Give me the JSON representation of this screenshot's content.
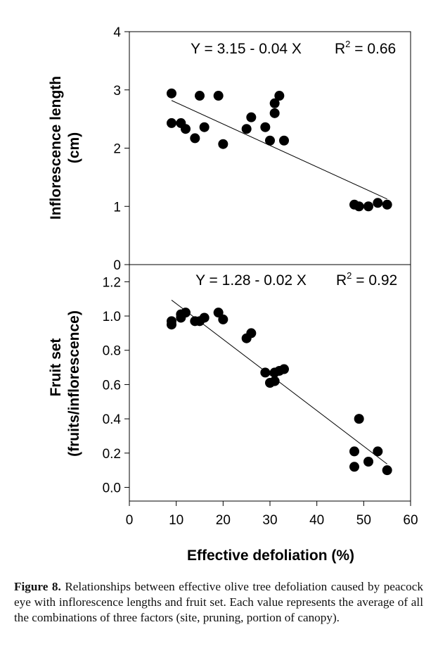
{
  "figure": {
    "caption_label": "Figure 8.",
    "caption_text": "Relationships between effective olive tree defoliation caused by peacock eye with inflorescence lengths and fruit set. Each value represents the average of all the combinations of three factors (site, pruning, portion of canopy)."
  },
  "chart_data": [
    {
      "type": "scatter",
      "title": "",
      "xlabel": "Effective defoliation (%)",
      "ylabel_line1": "Inflorescence length",
      "ylabel_line2": "(cm)",
      "xlim": [
        0,
        60
      ],
      "ylim": [
        0,
        4
      ],
      "y_ticks": [
        "0",
        "1",
        "2",
        "3",
        "4"
      ],
      "equation": "Y = 3.15 - 0.04 X",
      "r2_label": "R",
      "r2_sup": "2",
      "r2_value": " = 0.66",
      "regression": {
        "intercept": 3.15,
        "slope": -0.0368,
        "x_range": [
          9,
          55
        ]
      },
      "grid": false,
      "points": [
        [
          9,
          2.94
        ],
        [
          9,
          2.43
        ],
        [
          11,
          2.43
        ],
        [
          12,
          2.33
        ],
        [
          14,
          2.17
        ],
        [
          15,
          2.9
        ],
        [
          16,
          2.36
        ],
        [
          19,
          2.9
        ],
        [
          20,
          2.07
        ],
        [
          25,
          2.33
        ],
        [
          26,
          2.53
        ],
        [
          29,
          2.36
        ],
        [
          30,
          2.13
        ],
        [
          31,
          2.6
        ],
        [
          31,
          2.77
        ],
        [
          32,
          2.9
        ],
        [
          33,
          2.13
        ],
        [
          48,
          1.03
        ],
        [
          49,
          1.0
        ],
        [
          51,
          1.0
        ],
        [
          53,
          1.06
        ],
        [
          55,
          1.03
        ]
      ]
    },
    {
      "type": "scatter",
      "title": "",
      "xlabel": "Effective defoliation (%)",
      "ylabel_line1": "Fruit set",
      "ylabel_line2": "(fruits/inflorescence)",
      "xlim": [
        0,
        60
      ],
      "ylim": [
        -0.08,
        1.3
      ],
      "y_ticks": [
        "0.0",
        "0.2",
        "0.4",
        "0.6",
        "0.8",
        "1.0",
        "1.2"
      ],
      "x_ticks": [
        "0",
        "10",
        "20",
        "30",
        "40",
        "50",
        "60"
      ],
      "equation": "Y = 1.28 - 0.02 X",
      "r2_label": "R",
      "r2_sup": "2",
      "r2_value": " = 0.92",
      "regression": {
        "intercept": 1.28,
        "slope": -0.0208,
        "x_range": [
          9,
          55
        ]
      },
      "grid": false,
      "points": [
        [
          9,
          0.97
        ],
        [
          9,
          0.95
        ],
        [
          11,
          1.01
        ],
        [
          11,
          0.99
        ],
        [
          12,
          1.02
        ],
        [
          14,
          0.97
        ],
        [
          15,
          0.97
        ],
        [
          16,
          0.99
        ],
        [
          19,
          1.02
        ],
        [
          20,
          0.98
        ],
        [
          25,
          0.87
        ],
        [
          26,
          0.9
        ],
        [
          29,
          0.67
        ],
        [
          30,
          0.61
        ],
        [
          31,
          0.62
        ],
        [
          31,
          0.67
        ],
        [
          32,
          0.68
        ],
        [
          33,
          0.69
        ],
        [
          48,
          0.21
        ],
        [
          48,
          0.12
        ],
        [
          49,
          0.4
        ],
        [
          51,
          0.15
        ],
        [
          53,
          0.21
        ],
        [
          55,
          0.1
        ]
      ]
    }
  ]
}
